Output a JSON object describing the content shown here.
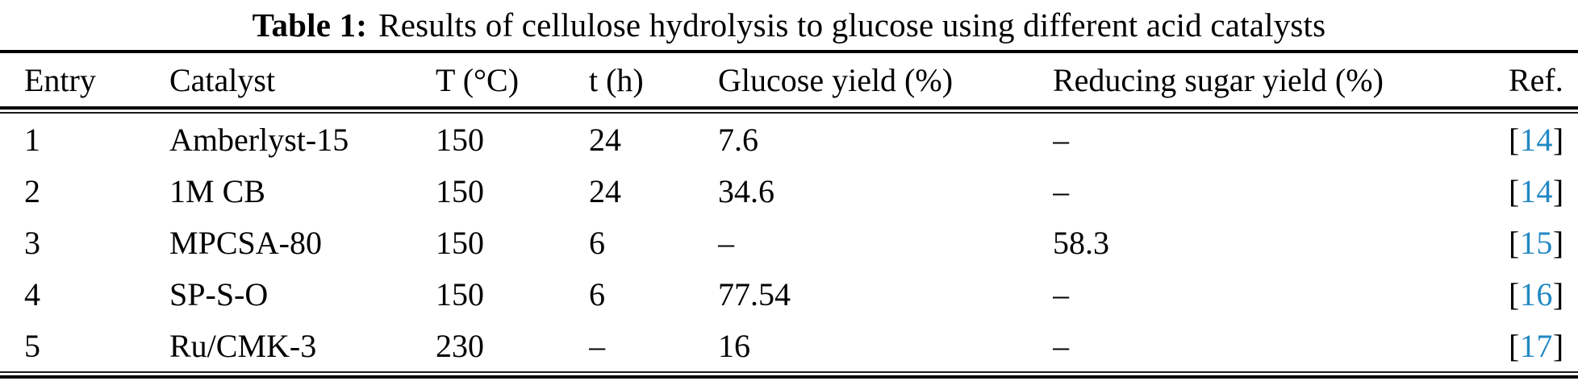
{
  "title": {
    "label": "Table 1:",
    "text": "Results of cellulose hydrolysis to glucose using different acid catalysts"
  },
  "table": {
    "columns": [
      "Entry",
      "Catalyst",
      "T (°C)",
      "t (h)",
      "Glucose yield (%)",
      "Reducing sugar yield (%)",
      "Ref."
    ],
    "rows": [
      {
        "entry": "1",
        "catalyst": "Amberlyst-15",
        "temperature": "150",
        "time": "24",
        "glucose_yield": "7.6",
        "reducing_sugar_yield": "–",
        "ref": "14"
      },
      {
        "entry": "2",
        "catalyst": "1M CB",
        "temperature": "150",
        "time": "24",
        "glucose_yield": "34.6",
        "reducing_sugar_yield": "–",
        "ref": "14"
      },
      {
        "entry": "3",
        "catalyst": "MPCSA-80",
        "temperature": "150",
        "time": "6",
        "glucose_yield": "–",
        "reducing_sugar_yield": "58.3",
        "ref": "15"
      },
      {
        "entry": "4",
        "catalyst": "SP-S-O",
        "temperature": "150",
        "time": "6",
        "glucose_yield": "77.54",
        "reducing_sugar_yield": "–",
        "ref": "16"
      },
      {
        "entry": "5",
        "catalyst": "Ru/CMK-3",
        "temperature": "230",
        "time": "–",
        "glucose_yield": "16",
        "reducing_sugar_yield": "–",
        "ref": "17"
      }
    ],
    "ref_brackets": {
      "open": "[",
      "close": "]"
    }
  },
  "colors": {
    "ref_link": "#2288c4",
    "text": "#000000",
    "rule": "#000000"
  }
}
